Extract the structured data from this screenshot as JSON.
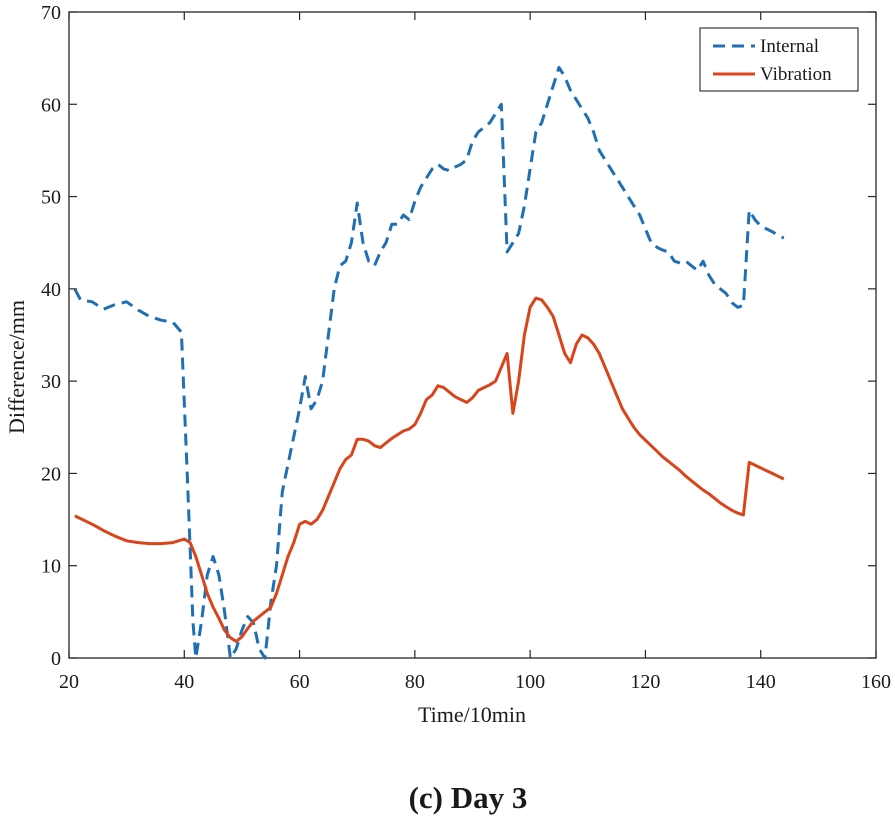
{
  "chart_data": {
    "type": "line",
    "title": "",
    "caption": "(c) Day 3",
    "xlabel": "Time/10min",
    "ylabel": "Difference/mm",
    "xlim": [
      20,
      160
    ],
    "ylim": [
      0,
      70
    ],
    "xticks": [
      20,
      40,
      60,
      80,
      100,
      120,
      140,
      160
    ],
    "yticks": [
      0,
      10,
      20,
      30,
      40,
      50,
      60,
      70
    ],
    "grid": false,
    "legend_position": "top-right",
    "series": [
      {
        "name": "Internal",
        "color": "#1f6fb4",
        "style": "dashed",
        "x": [
          21,
          22,
          24,
          26,
          28,
          30,
          32,
          34,
          36,
          38,
          39.5,
          40.5,
          41,
          41.5,
          42,
          43,
          44,
          45,
          46,
          47,
          48,
          49,
          50,
          51,
          52,
          53,
          54,
          54.5,
          55,
          56,
          57,
          58,
          59,
          60,
          61,
          62,
          63,
          64,
          65,
          66,
          67,
          68,
          69,
          70,
          71,
          72,
          73,
          74,
          75,
          76,
          77,
          78,
          79,
          80,
          81,
          82,
          83,
          84,
          85,
          86,
          87,
          88,
          89,
          90,
          91,
          92,
          93,
          94,
          95,
          96,
          97,
          98,
          99,
          100,
          101,
          102,
          103,
          104,
          105,
          106,
          107,
          108,
          109,
          110,
          111,
          112,
          113,
          114,
          115,
          116,
          117,
          118,
          119,
          120,
          121,
          122,
          123,
          124,
          125,
          126,
          127,
          128,
          129,
          130,
          131,
          132,
          133,
          134,
          135,
          136,
          137,
          138,
          139,
          140,
          141,
          142,
          143,
          144
        ],
        "y": [
          40,
          38.8,
          38.6,
          37.8,
          38.3,
          38.6,
          37.7,
          37,
          36.6,
          36.4,
          35.3,
          20,
          12,
          4,
          0,
          4,
          9,
          11,
          9,
          5,
          0,
          1,
          3,
          4.5,
          3.8,
          1,
          0,
          3,
          6,
          10,
          18,
          21,
          24,
          27,
          30.5,
          27,
          28,
          30,
          35,
          40,
          42.5,
          43,
          45,
          49.3,
          45,
          43,
          42.5,
          44,
          45,
          47,
          47,
          48,
          47.5,
          49.5,
          51,
          52,
          53,
          53.5,
          53,
          52.8,
          53.2,
          53.5,
          54,
          56,
          57,
          57.5,
          58,
          59,
          60,
          44,
          45,
          46,
          49,
          53,
          57,
          58,
          60,
          62,
          64,
          63,
          61.5,
          60.5,
          59.5,
          58.5,
          57,
          55,
          54,
          53,
          52,
          51,
          50,
          49,
          48,
          46.5,
          45,
          44.5,
          44.2,
          44,
          43,
          42.8,
          43,
          42.5,
          42,
          43,
          41.5,
          40.5,
          40,
          39.5,
          38.5,
          38,
          38.2,
          48.5,
          47.5,
          46.8,
          46.5,
          46.2,
          45.8,
          45.5
        ]
      },
      {
        "name": "Vibration",
        "color": "#d9441a",
        "style": "solid",
        "x": [
          21,
          22,
          24,
          26,
          28,
          30,
          32,
          34,
          36,
          38,
          39,
          40,
          41,
          42,
          43,
          44,
          45,
          46,
          47,
          48,
          49,
          50,
          51,
          52,
          53,
          54,
          55,
          56,
          57,
          58,
          59,
          60,
          61,
          62,
          63,
          64,
          65,
          66,
          67,
          68,
          69,
          70,
          71,
          72,
          73,
          74,
          75,
          76,
          77,
          78,
          79,
          80,
          81,
          82,
          83,
          84,
          85,
          86,
          87,
          88,
          89,
          90,
          91,
          92,
          93,
          94,
          95,
          96,
          97,
          98,
          99,
          100,
          101,
          102,
          103,
          104,
          105,
          106,
          107,
          108,
          109,
          110,
          111,
          112,
          113,
          114,
          115,
          116,
          117,
          118,
          119,
          120,
          121,
          122,
          123,
          124,
          125,
          126,
          127,
          128,
          129,
          130,
          131,
          132,
          133,
          134,
          135,
          136,
          137,
          138,
          139,
          140,
          141,
          142,
          143,
          144
        ],
        "y": [
          15.4,
          15.1,
          14.5,
          13.8,
          13.2,
          12.7,
          12.5,
          12.4,
          12.4,
          12.5,
          12.7,
          12.9,
          12.5,
          11,
          9,
          7,
          5.5,
          4.3,
          3,
          2.2,
          1.8,
          2.3,
          3.2,
          4,
          4.5,
          5,
          5.5,
          7,
          9,
          11,
          12.5,
          14.5,
          14.8,
          14.5,
          15,
          16,
          17.5,
          19,
          20.5,
          21.5,
          22,
          23.7,
          23.7,
          23.5,
          23,
          22.8,
          23.3,
          23.8,
          24.2,
          24.6,
          24.8,
          25.3,
          26.5,
          28,
          28.5,
          29.5,
          29.3,
          28.8,
          28.3,
          28,
          27.7,
          28.2,
          29,
          29.3,
          29.6,
          30,
          31.5,
          33,
          26.5,
          30,
          35,
          38,
          39,
          38.8,
          38,
          37,
          35,
          33,
          32,
          34,
          35,
          34.7,
          34,
          33,
          31.5,
          30,
          28.5,
          27,
          26,
          25,
          24.2,
          23.6,
          23,
          22.4,
          21.8,
          21.3,
          20.8,
          20.3,
          19.7,
          19.2,
          18.7,
          18.2,
          17.8,
          17.3,
          16.8,
          16.4,
          16,
          15.7,
          15.5,
          21.2,
          20.9,
          20.6,
          20.3,
          20,
          19.7,
          19.4
        ]
      }
    ]
  }
}
